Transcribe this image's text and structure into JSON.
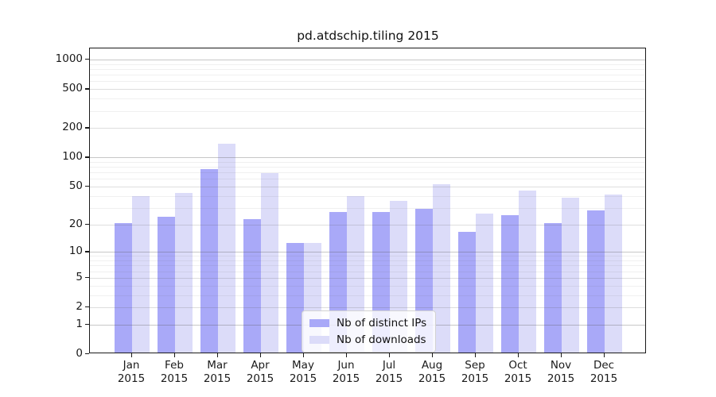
{
  "chart_data": {
    "type": "bar",
    "title": "pd.atdschip.tiling 2015",
    "categories": [
      "Jan 2015",
      "Feb 2015",
      "Mar 2015",
      "Apr 2015",
      "May 2015",
      "Jun 2015",
      "Jul 2015",
      "Aug 2015",
      "Sep 2015",
      "Oct 2015",
      "Nov 2015",
      "Dec 2015"
    ],
    "series": [
      {
        "name": "Nb of distinct IPs",
        "color": "#a9a9f8",
        "values": [
          20,
          23,
          73,
          22,
          12,
          26,
          26,
          28,
          16,
          24,
          20,
          27
        ]
      },
      {
        "name": "Nb of downloads",
        "color": "#dcdcf9",
        "values": [
          38,
          41,
          132,
          66,
          12,
          38,
          34,
          51,
          25,
          44,
          37,
          40
        ]
      }
    ],
    "xlabel": "",
    "ylabel": "",
    "yscale": "log1p",
    "y_ticks": [
      0,
      1,
      2,
      5,
      10,
      20,
      50,
      100,
      200,
      500,
      1000
    ],
    "ylim": [
      0,
      1270
    ],
    "grid": true,
    "legend_position": "lower center",
    "colors": {
      "background": "#ffffff",
      "spine": "#1a1a1a",
      "grid_major": "#c6c6c6",
      "grid_minor": "#ececec",
      "text": "#1a1a1a"
    }
  }
}
